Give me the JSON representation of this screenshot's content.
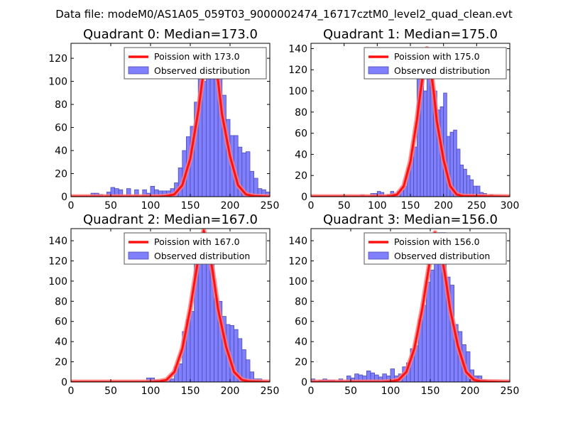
{
  "suptitle": "Data file: modeM0/AS1A05_059T03_9000002474_16717cztM0_level2_quad_clean.evt",
  "colors": {
    "bar_fill": "#8080ff",
    "bar_edge": "#4b4bb4",
    "poisson_line": "#ff1111",
    "poisson_glow": "#ff7a7a",
    "legend_border": "#555555"
  },
  "chart_data": [
    {
      "type": "bar",
      "title": "Quadrant 0: Median=173.0",
      "legend": [
        "Poission with 173.0",
        "Observed distribution"
      ],
      "legend_position": "top-right",
      "xlim": [
        0,
        250
      ],
      "ylim": [
        0,
        133
      ],
      "xticks": [
        0,
        50,
        100,
        150,
        200,
        250
      ],
      "yticks": [
        0,
        20,
        40,
        60,
        80,
        100,
        120
      ],
      "median": 173.0,
      "bin_width": 5,
      "histogram": [
        [
          25,
          3
        ],
        [
          30,
          3
        ],
        [
          35,
          2
        ],
        [
          45,
          4
        ],
        [
          50,
          8
        ],
        [
          55,
          7
        ],
        [
          60,
          6
        ],
        [
          70,
          7
        ],
        [
          80,
          6
        ],
        [
          90,
          6
        ],
        [
          95,
          3
        ],
        [
          100,
          9
        ],
        [
          105,
          6
        ],
        [
          110,
          5
        ],
        [
          115,
          5
        ],
        [
          120,
          5
        ],
        [
          125,
          7
        ],
        [
          130,
          12
        ],
        [
          135,
          25
        ],
        [
          140,
          40
        ],
        [
          145,
          52
        ],
        [
          150,
          61
        ],
        [
          155,
          82
        ],
        [
          160,
          111
        ],
        [
          165,
          100
        ],
        [
          170,
          103
        ],
        [
          175,
          124
        ],
        [
          180,
          122
        ],
        [
          185,
          107
        ],
        [
          190,
          88
        ],
        [
          195,
          67
        ],
        [
          200,
          53
        ],
        [
          205,
          53
        ],
        [
          210,
          43
        ],
        [
          215,
          38
        ],
        [
          220,
          39
        ],
        [
          225,
          22
        ],
        [
          230,
          16
        ],
        [
          235,
          7
        ],
        [
          240,
          6
        ],
        [
          245,
          4
        ],
        [
          250,
          3
        ]
      ],
      "poisson_curve": [
        [
          0,
          0
        ],
        [
          110,
          0
        ],
        [
          120,
          0.5
        ],
        [
          130,
          2
        ],
        [
          140,
          10
        ],
        [
          150,
          33
        ],
        [
          160,
          74
        ],
        [
          165,
          100
        ],
        [
          170,
          118
        ],
        [
          173,
          127
        ],
        [
          180,
          117
        ],
        [
          185,
          100
        ],
        [
          190,
          71
        ],
        [
          200,
          35
        ],
        [
          210,
          10
        ],
        [
          220,
          2
        ],
        [
          230,
          0.5
        ],
        [
          250,
          0
        ]
      ]
    },
    {
      "type": "bar",
      "title": "Quadrant 1: Median=175.0",
      "legend": [
        "Poission with 175.0",
        "Observed distribution"
      ],
      "legend_position": "top-right",
      "xlim": [
        0,
        300
      ],
      "ylim": [
        0,
        145
      ],
      "xticks": [
        0,
        50,
        100,
        150,
        200,
        250,
        300
      ],
      "yticks": [
        0,
        20,
        40,
        60,
        80,
        100,
        120,
        140
      ],
      "median": 175.0,
      "bin_width": 5,
      "histogram": [
        [
          75,
          2
        ],
        [
          90,
          3
        ],
        [
          95,
          3
        ],
        [
          100,
          5
        ],
        [
          105,
          4
        ],
        [
          115,
          2
        ],
        [
          120,
          5
        ],
        [
          125,
          2
        ],
        [
          130,
          5
        ],
        [
          135,
          6
        ],
        [
          140,
          10
        ],
        [
          145,
          27
        ],
        [
          150,
          37
        ],
        [
          155,
          47
        ],
        [
          160,
          120
        ],
        [
          165,
          115
        ],
        [
          170,
          100
        ],
        [
          175,
          127
        ],
        [
          180,
          121
        ],
        [
          185,
          100
        ],
        [
          190,
          82
        ],
        [
          195,
          85
        ],
        [
          200,
          98
        ],
        [
          205,
          57
        ],
        [
          210,
          61
        ],
        [
          215,
          63
        ],
        [
          220,
          45
        ],
        [
          225,
          30
        ],
        [
          230,
          26
        ],
        [
          235,
          20
        ],
        [
          240,
          16
        ],
        [
          245,
          10
        ],
        [
          250,
          10
        ],
        [
          255,
          4
        ],
        [
          260,
          3
        ],
        [
          270,
          2
        ]
      ],
      "poisson_curve": [
        [
          0,
          0
        ],
        [
          110,
          0
        ],
        [
          120,
          0.5
        ],
        [
          130,
          2
        ],
        [
          140,
          10
        ],
        [
          150,
          33
        ],
        [
          160,
          73
        ],
        [
          165,
          98
        ],
        [
          170,
          120
        ],
        [
          175,
          140
        ],
        [
          180,
          123
        ],
        [
          185,
          100
        ],
        [
          190,
          71
        ],
        [
          200,
          35
        ],
        [
          210,
          10
        ],
        [
          220,
          2
        ],
        [
          230,
          0.5
        ],
        [
          300,
          0
        ]
      ]
    },
    {
      "type": "bar",
      "title": "Quadrant 2: Median=167.0",
      "legend": [
        "Poission with 167.0",
        "Observed distribution"
      ],
      "legend_position": "top-right",
      "xlim": [
        0,
        250
      ],
      "ylim": [
        0,
        152
      ],
      "xticks": [
        0,
        50,
        100,
        150,
        200,
        250
      ],
      "yticks": [
        0,
        20,
        40,
        60,
        80,
        100,
        120,
        140
      ],
      "median": 167.0,
      "bin_width": 5,
      "histogram": [
        [
          95,
          4
        ],
        [
          100,
          4
        ],
        [
          105,
          2
        ],
        [
          115,
          2
        ],
        [
          120,
          2
        ],
        [
          125,
          3
        ],
        [
          130,
          15
        ],
        [
          135,
          18
        ],
        [
          140,
          50
        ],
        [
          145,
          62
        ],
        [
          150,
          70
        ],
        [
          155,
          118
        ],
        [
          160,
          125
        ],
        [
          165,
          135
        ],
        [
          170,
          128
        ],
        [
          175,
          119
        ],
        [
          180,
          83
        ],
        [
          185,
          80
        ],
        [
          190,
          65
        ],
        [
          195,
          57
        ],
        [
          200,
          56
        ],
        [
          205,
          52
        ],
        [
          210,
          43
        ],
        [
          215,
          32
        ],
        [
          220,
          22
        ],
        [
          225,
          10
        ],
        [
          230,
          3
        ],
        [
          235,
          3
        ]
      ],
      "poisson_curve": [
        [
          0,
          0
        ],
        [
          100,
          0
        ],
        [
          110,
          0.5
        ],
        [
          120,
          2
        ],
        [
          130,
          10
        ],
        [
          140,
          33
        ],
        [
          150,
          73
        ],
        [
          155,
          98
        ],
        [
          160,
          122
        ],
        [
          167,
          150
        ],
        [
          175,
          125
        ],
        [
          180,
          100
        ],
        [
          185,
          72
        ],
        [
          195,
          35
        ],
        [
          205,
          10
        ],
        [
          215,
          2
        ],
        [
          225,
          0.5
        ],
        [
          250,
          0
        ]
      ]
    },
    {
      "type": "bar",
      "title": "Quadrant 3: Median=156.0",
      "legend": [
        "Poission with 156.0",
        "Observed distribution"
      ],
      "legend_position": "top-right",
      "xlim": [
        0,
        250
      ],
      "ylim": [
        0,
        152
      ],
      "xticks": [
        0,
        50,
        100,
        150,
        200,
        250
      ],
      "yticks": [
        0,
        20,
        40,
        60,
        80,
        100,
        120,
        140
      ],
      "median": 156.0,
      "bin_width": 5,
      "histogram": [
        [
          0,
          3
        ],
        [
          10,
          2
        ],
        [
          15,
          3
        ],
        [
          20,
          2
        ],
        [
          25,
          2
        ],
        [
          35,
          3
        ],
        [
          45,
          6
        ],
        [
          50,
          4
        ],
        [
          55,
          8
        ],
        [
          60,
          7
        ],
        [
          65,
          6
        ],
        [
          70,
          11
        ],
        [
          75,
          9
        ],
        [
          80,
          7
        ],
        [
          85,
          5
        ],
        [
          90,
          8
        ],
        [
          95,
          6
        ],
        [
          100,
          13
        ],
        [
          105,
          6
        ],
        [
          110,
          8
        ],
        [
          115,
          15
        ],
        [
          120,
          19
        ],
        [
          125,
          33
        ],
        [
          130,
          36
        ],
        [
          135,
          62
        ],
        [
          140,
          76
        ],
        [
          145,
          99
        ],
        [
          150,
          111
        ],
        [
          155,
          137
        ],
        [
          160,
          148
        ],
        [
          165,
          148
        ],
        [
          170,
          104
        ],
        [
          175,
          96
        ],
        [
          180,
          57
        ],
        [
          185,
          50
        ],
        [
          190,
          37
        ],
        [
          195,
          30
        ],
        [
          200,
          12
        ],
        [
          205,
          6
        ],
        [
          210,
          6
        ],
        [
          215,
          2
        ]
      ],
      "poisson_curve": [
        [
          0,
          0
        ],
        [
          90,
          0
        ],
        [
          100,
          0.5
        ],
        [
          110,
          2
        ],
        [
          120,
          10
        ],
        [
          130,
          33
        ],
        [
          140,
          73
        ],
        [
          145,
          98
        ],
        [
          150,
          122
        ],
        [
          156,
          148
        ],
        [
          165,
          123
        ],
        [
          170,
          99
        ],
        [
          175,
          72
        ],
        [
          185,
          35
        ],
        [
          195,
          10
        ],
        [
          205,
          2
        ],
        [
          215,
          0.5
        ],
        [
          250,
          0
        ]
      ]
    }
  ]
}
